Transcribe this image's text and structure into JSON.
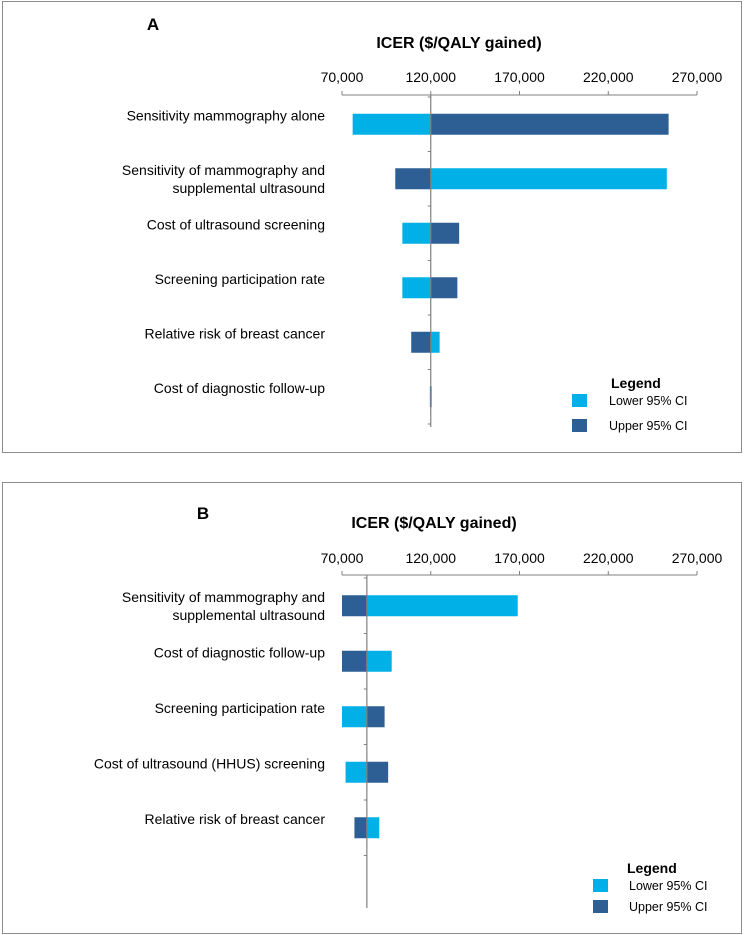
{
  "colors": {
    "lower": "#00b0e6",
    "upper": "#2e5f94",
    "axis": "#808080"
  },
  "legend": {
    "title": "Legend",
    "lower_label": "Lower 95% CI",
    "upper_label": "Upper 95% CI"
  },
  "chart_data": [
    {
      "type": "bar",
      "subtype": "tornado",
      "panel_label": "A",
      "title": "ICER ($/QALY gained)",
      "xlim": [
        70000,
        270000
      ],
      "xticks": [
        "70,000",
        "120,000",
        "170,000",
        "220,000",
        "270,000"
      ],
      "baseline": 120000,
      "categories": [
        "Sensitivity mammography alone",
        [
          "Sensitivity of mammography and",
          "supplemental ultrasound"
        ],
        "Cost of ultrasound screening",
        "Screening participation rate",
        "Relative risk of breast cancer",
        "Cost of diagnostic follow-up"
      ],
      "series": [
        {
          "name": "Lower 95% CI",
          "values": [
            76000,
            253000,
            104000,
            104000,
            125000,
            120500
          ]
        },
        {
          "name": "Upper 95% CI",
          "values": [
            254000,
            100000,
            136000,
            135000,
            109000,
            119500
          ]
        }
      ]
    },
    {
      "type": "bar",
      "subtype": "tornado",
      "panel_label": "B",
      "title": "ICER ($/QALY gained)",
      "xlim": [
        70000,
        270000
      ],
      "xticks": [
        "70,000",
        "120,000",
        "170,000",
        "220,000",
        "270,000"
      ],
      "baseline": 84000,
      "categories": [
        [
          "Sensitivity of mammography and",
          "supplemental ultrasound"
        ],
        "Cost of diagnostic follow-up",
        "Screening participation rate",
        "Cost of ultrasound (HHUS) screening",
        "Relative risk of breast cancer"
      ],
      "series": [
        {
          "name": "Lower 95% CI",
          "values": [
            169000,
            98000,
            70000,
            72000,
            91000
          ]
        },
        {
          "name": "Upper 95% CI",
          "values": [
            70000,
            70000,
            94000,
            96000,
            77000
          ]
        }
      ]
    }
  ]
}
